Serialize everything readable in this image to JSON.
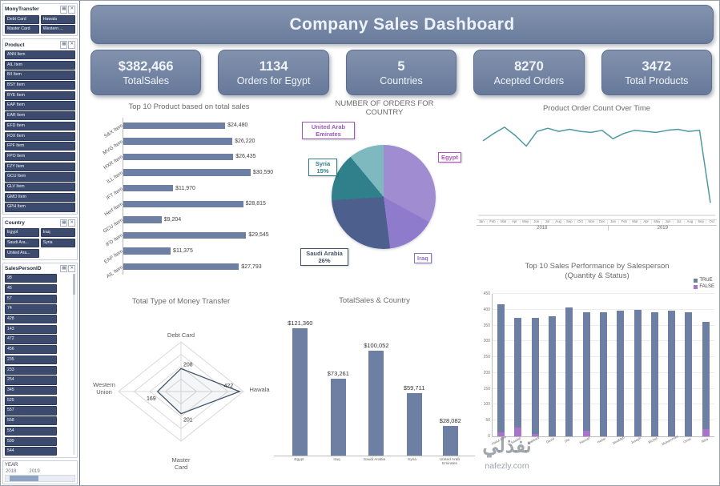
{
  "header": {
    "title": "Company Sales Dashboard"
  },
  "kpis": [
    {
      "value": "$382,466",
      "label": "TotalSales"
    },
    {
      "value": "1134",
      "label": "Orders for Egypt"
    },
    {
      "value": "5",
      "label": "Countries"
    },
    {
      "value": "8270",
      "label": "Acepted Orders"
    },
    {
      "value": "3472",
      "label": "Total Products"
    }
  ],
  "slicers": {
    "money_transfer": {
      "title": "MonyTransfer",
      "items": [
        "Debt Card",
        "Hawala",
        "Master Card",
        "Western ..."
      ]
    },
    "product": {
      "title": "Product",
      "items": [
        "ANN Item",
        "AIL Item",
        "B/I Item",
        "BSY Item",
        "BYE Item",
        "EAP Item",
        "EAR Item",
        "EFD Item",
        "FDX Item",
        "FPF Item",
        "FPO Item",
        "FZY Item",
        "GCU Item",
        "GLV Item",
        "GMO Item",
        "GPH Item"
      ]
    },
    "country": {
      "title": "Country",
      "items": [
        "Egypt",
        "Iraq",
        "Saudi Ara...",
        "Syria",
        "United Ara..."
      ]
    },
    "salesperson": {
      "title": "SalesPersonID",
      "items": [
        "98",
        "45",
        "57",
        "74",
        "428",
        "143",
        "472",
        "456",
        "235",
        "233",
        "254",
        "345",
        "525",
        "557",
        "558",
        "554",
        "599",
        "544"
      ]
    },
    "year": {
      "title": "YEAR",
      "range": [
        "2018",
        "2019"
      ]
    }
  },
  "watermark": {
    "name": "نفذلي",
    "site": "nafezly.com"
  },
  "chart_data": [
    {
      "type": "bar",
      "orientation": "horizontal",
      "title": "Top 10 Product based on total sales",
      "categories": [
        "S&X Item",
        "MVG Item",
        "HXR Item",
        "ILL Item",
        "IFT Item",
        "Herf Item",
        "GCU Item",
        "IFD Item",
        "EAP Item",
        "AIL Item"
      ],
      "values": [
        24480,
        26220,
        26435,
        30590,
        11970,
        28815,
        9204,
        29545,
        11375,
        27793
      ],
      "value_labels": [
        "$24,480",
        "$26,220",
        "$26,435",
        "$30,590",
        "$11,970",
        "$28,815",
        "$9,204",
        "$29,545",
        "$11,375",
        "$27,793"
      ],
      "xmax": 32000,
      "bar_color": "#6d80a3"
    },
    {
      "type": "pie",
      "title": "NUMBER OF ORDERS FOR COUNTRY",
      "slices": [
        {
          "label": "Egypt",
          "display": "Egypt",
          "pct": 33,
          "color": "#a08cd0",
          "label_color": "#b052c0"
        },
        {
          "label": "Iraq",
          "display": "Iraq",
          "pct": 15,
          "color": "#8f7bcb",
          "label_color": "#8e6fc8"
        },
        {
          "label": "Saudi Arabia",
          "display": "Saudi Arabia 26%",
          "pct": 26,
          "color": "#4d5f8d",
          "label_color": "#44546a"
        },
        {
          "label": "Syria",
          "display": "Syria 15%",
          "pct": 15,
          "color": "#2f808b",
          "label_color": "#2e7d8a"
        },
        {
          "label": "United Arab Emirates",
          "display": "United Arab Emirates",
          "pct": 11,
          "color": "#7fb9c0",
          "label_color": "#9b59b6"
        }
      ]
    },
    {
      "type": "line",
      "title": "Product Order Count Over Time",
      "x": [
        "Jan",
        "Feb",
        "Mar",
        "Apr",
        "May",
        "Jun",
        "Jul",
        "Aug",
        "Sep",
        "Oct",
        "Nov",
        "Dec",
        "Jan",
        "Feb",
        "Mar",
        "Apr",
        "May",
        "Jun",
        "Jul",
        "Aug",
        "Sep",
        "Oct"
      ],
      "year_groups": [
        {
          "label": "2018",
          "span": 12
        },
        {
          "label": "2019",
          "span": 10
        }
      ],
      "values": [
        355,
        390,
        420,
        380,
        330,
        400,
        415,
        400,
        410,
        400,
        395,
        405,
        365,
        390,
        405,
        400,
        395,
        405,
        410,
        400,
        405,
        60
      ],
      "ymax": 450,
      "line_color": "#4f98a3"
    },
    {
      "type": "radar",
      "title": "Total Type of Money Transfer",
      "axes": [
        "Debt Card",
        "Hawala",
        "Master Card",
        "Western Union"
      ],
      "values": [
        208,
        422,
        201,
        169
      ],
      "scale_max": 450,
      "line_color": "#44546a"
    },
    {
      "type": "bar",
      "title": "TotalSales & Country",
      "categories": [
        "Egypt",
        "Iraq",
        "Saudi Arabia",
        "Syria",
        "United Arab Emirates"
      ],
      "values": [
        121360,
        73261,
        100052,
        59711,
        28082
      ],
      "value_labels": [
        "$121,360",
        "$73,261",
        "$100,052",
        "$59,711",
        "$28,082"
      ],
      "ymax": 130000,
      "bar_color": "#6d80a3"
    },
    {
      "type": "bar",
      "stacked": true,
      "title": "Top 10 Sales Performance by Salesperson",
      "subtitle": "(Quantity & Status)",
      "legend": [
        {
          "name": "TRUE",
          "color": "#6d80a3"
        },
        {
          "name": "FALSE",
          "color": "#a873cb"
        }
      ],
      "categories": [
        "Abdul Amir",
        "Saadat",
        "Qabbani",
        "David",
        "Dia",
        "Hassan",
        "Heifer",
        "Jasablah",
        "Joseph",
        "Michel",
        "Muhammad",
        "Omar",
        "Riha"
      ],
      "series": [
        {
          "name": "TRUE",
          "values": [
            405,
            345,
            365,
            380,
            408,
            375,
            392,
            398,
            400,
            393,
            398,
            392,
            340
          ]
        },
        {
          "name": "FALSE",
          "values": [
            12,
            28,
            8,
            0,
            0,
            18,
            0,
            0,
            0,
            0,
            0,
            0,
            22
          ]
        }
      ],
      "ymax": 450,
      "yticks": [
        0,
        50,
        100,
        150,
        200,
        250,
        300,
        350,
        400,
        450
      ]
    }
  ]
}
